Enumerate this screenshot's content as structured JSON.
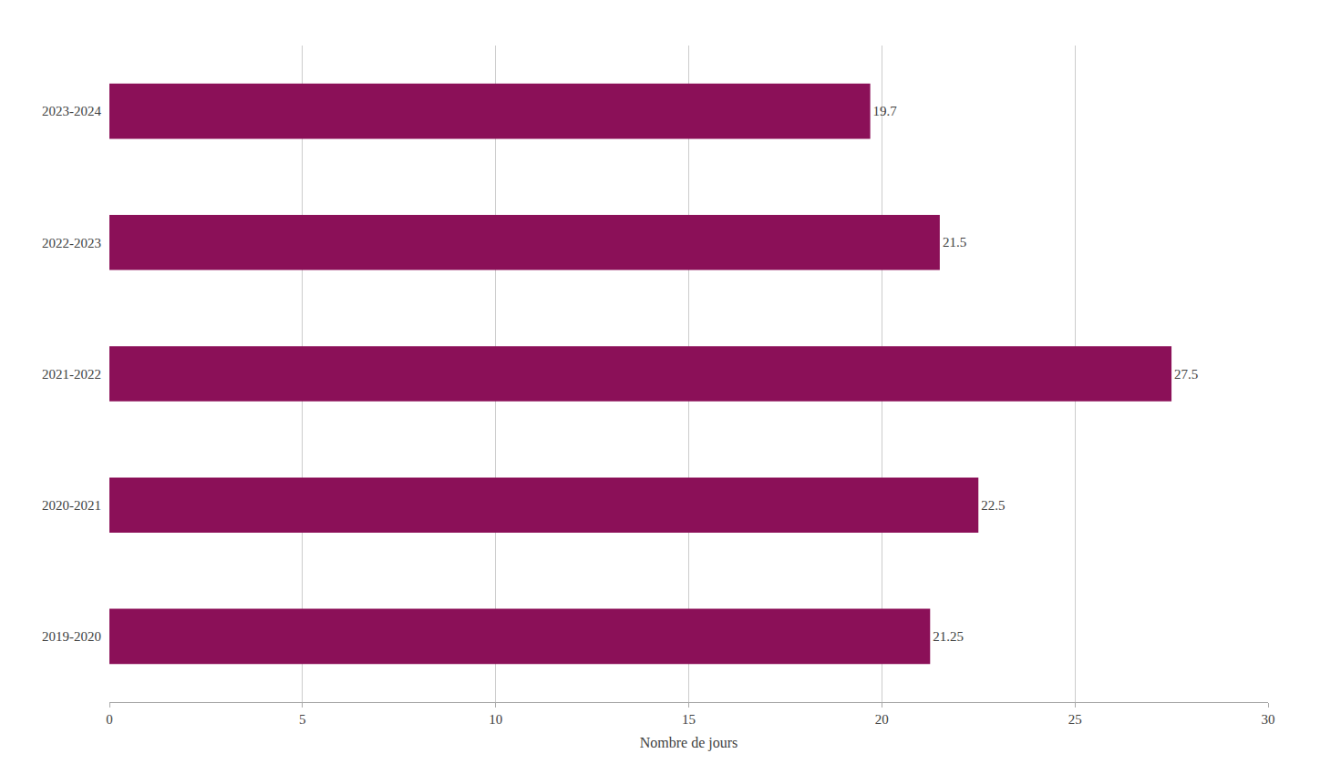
{
  "chart_data": {
    "type": "bar",
    "orientation": "horizontal",
    "categories": [
      "2019-2020",
      "2020-2021",
      "2021-2022",
      "2022-2023",
      "2023-2024"
    ],
    "values": [
      21.25,
      22.5,
      27.5,
      21.5,
      19.7
    ],
    "color": "#8B1058",
    "xlabel": "Nombre de jours",
    "xlim": [
      0,
      30
    ],
    "xticks": [
      0,
      5,
      10,
      15,
      20,
      25,
      30
    ],
    "grid": true,
    "data_labels": true
  }
}
